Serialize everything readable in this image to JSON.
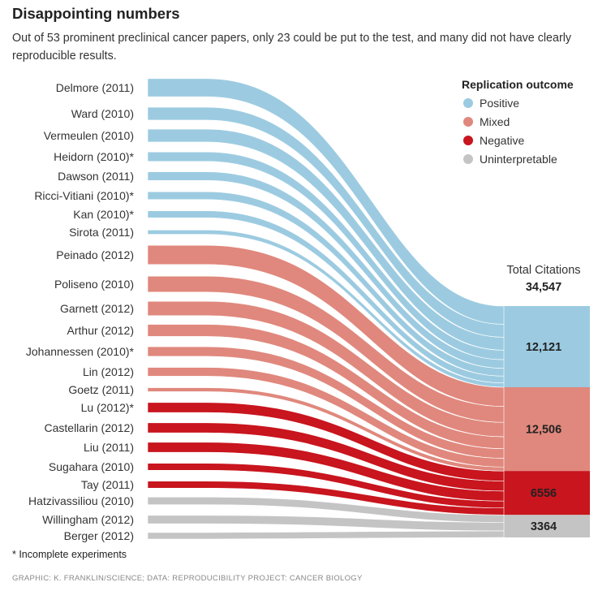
{
  "title": "Disappointing numbers",
  "subtitle": "Out of 53 prominent preclinical cancer papers, only 23 could be put to the test, and many did not have clearly reproducible results.",
  "footnote": "* Incomplete experiments",
  "credit": "GRAPHIC: K. FRANKLIN/SCIENCE; DATA: REPRODUCIBILITY PROJECT: CANCER BIOLOGY",
  "chart_data": {
    "type": "sankey",
    "legend": {
      "title": "Replication outcome",
      "placement": "top-right",
      "items": [
        {
          "key": "positive",
          "label": "Positive",
          "color": "#9ccbe1"
        },
        {
          "key": "mixed",
          "label": "Mixed",
          "color": "#e0887d"
        },
        {
          "key": "negative",
          "label": "Negative",
          "color": "#c8151e"
        },
        {
          "key": "uninterpretable",
          "label": "Uninterpretable",
          "color": "#c4c4c4"
        }
      ]
    },
    "total_label": "Total Citations",
    "total": 34547,
    "total_text": "34,547",
    "outcome_totals": [
      {
        "key": "positive",
        "value": 12121,
        "text": "12,121"
      },
      {
        "key": "mixed",
        "value": 12506,
        "text": "12,506"
      },
      {
        "key": "negative",
        "value": 6556,
        "text": "6556"
      },
      {
        "key": "uninterpretable",
        "value": 3364,
        "text": "3364"
      }
    ],
    "papers": [
      {
        "label": "Delmore (2011)",
        "outcome": "positive",
        "citations_est": 2710
      },
      {
        "label": "Ward (2010)",
        "outcome": "positive",
        "citations_est": 1934
      },
      {
        "label": "Vermeulen (2010)",
        "outcome": "positive",
        "citations_est": 1934
      },
      {
        "label": "Heidorn (2010)*",
        "outcome": "positive",
        "citations_est": 1418
      },
      {
        "label": "Dawson (2011)",
        "outcome": "positive",
        "citations_est": 1290
      },
      {
        "label": "Ricci-Vitiani (2010)*",
        "outcome": "positive",
        "citations_est": 1160
      },
      {
        "label": "Kan (2010)*",
        "outcome": "positive",
        "citations_est": 1032
      },
      {
        "label": "Sirota (2011)",
        "outcome": "positive",
        "citations_est": 643
      },
      {
        "label": "Peinado (2012)",
        "outcome": "mixed",
        "citations_est": 2858
      },
      {
        "label": "Poliseno (2010)",
        "outcome": "mixed",
        "citations_est": 2382
      },
      {
        "label": "Garnett (2012)",
        "outcome": "mixed",
        "citations_est": 2144
      },
      {
        "label": "Arthur (2012)",
        "outcome": "mixed",
        "citations_est": 1787
      },
      {
        "label": "Johannessen (2010)*",
        "outcome": "mixed",
        "citations_est": 1429
      },
      {
        "label": "Lin (2012)",
        "outcome": "mixed",
        "citations_est": 1310
      },
      {
        "label": "Goetz (2011)",
        "outcome": "mixed",
        "citations_est": 596
      },
      {
        "label": "Lu (2012)*",
        "outcome": "negative",
        "citations_est": 1495
      },
      {
        "label": "Castellarin (2012)",
        "outcome": "negative",
        "citations_est": 1495
      },
      {
        "label": "Liu (2011)",
        "outcome": "negative",
        "citations_est": 1495
      },
      {
        "label": "Sugahara (2010)",
        "outcome": "negative",
        "citations_est": 1035
      },
      {
        "label": "Tay (2011)",
        "outcome": "negative",
        "citations_est": 1036
      },
      {
        "label": "Hatzivassiliou (2010)",
        "outcome": "uninterpretable",
        "citations_est": 1121
      },
      {
        "label": "Willingham (2012)",
        "outcome": "uninterpretable",
        "citations_est": 1262
      },
      {
        "label": "Berger (2012)",
        "outcome": "uninterpretable",
        "citations_est": 981
      }
    ]
  }
}
